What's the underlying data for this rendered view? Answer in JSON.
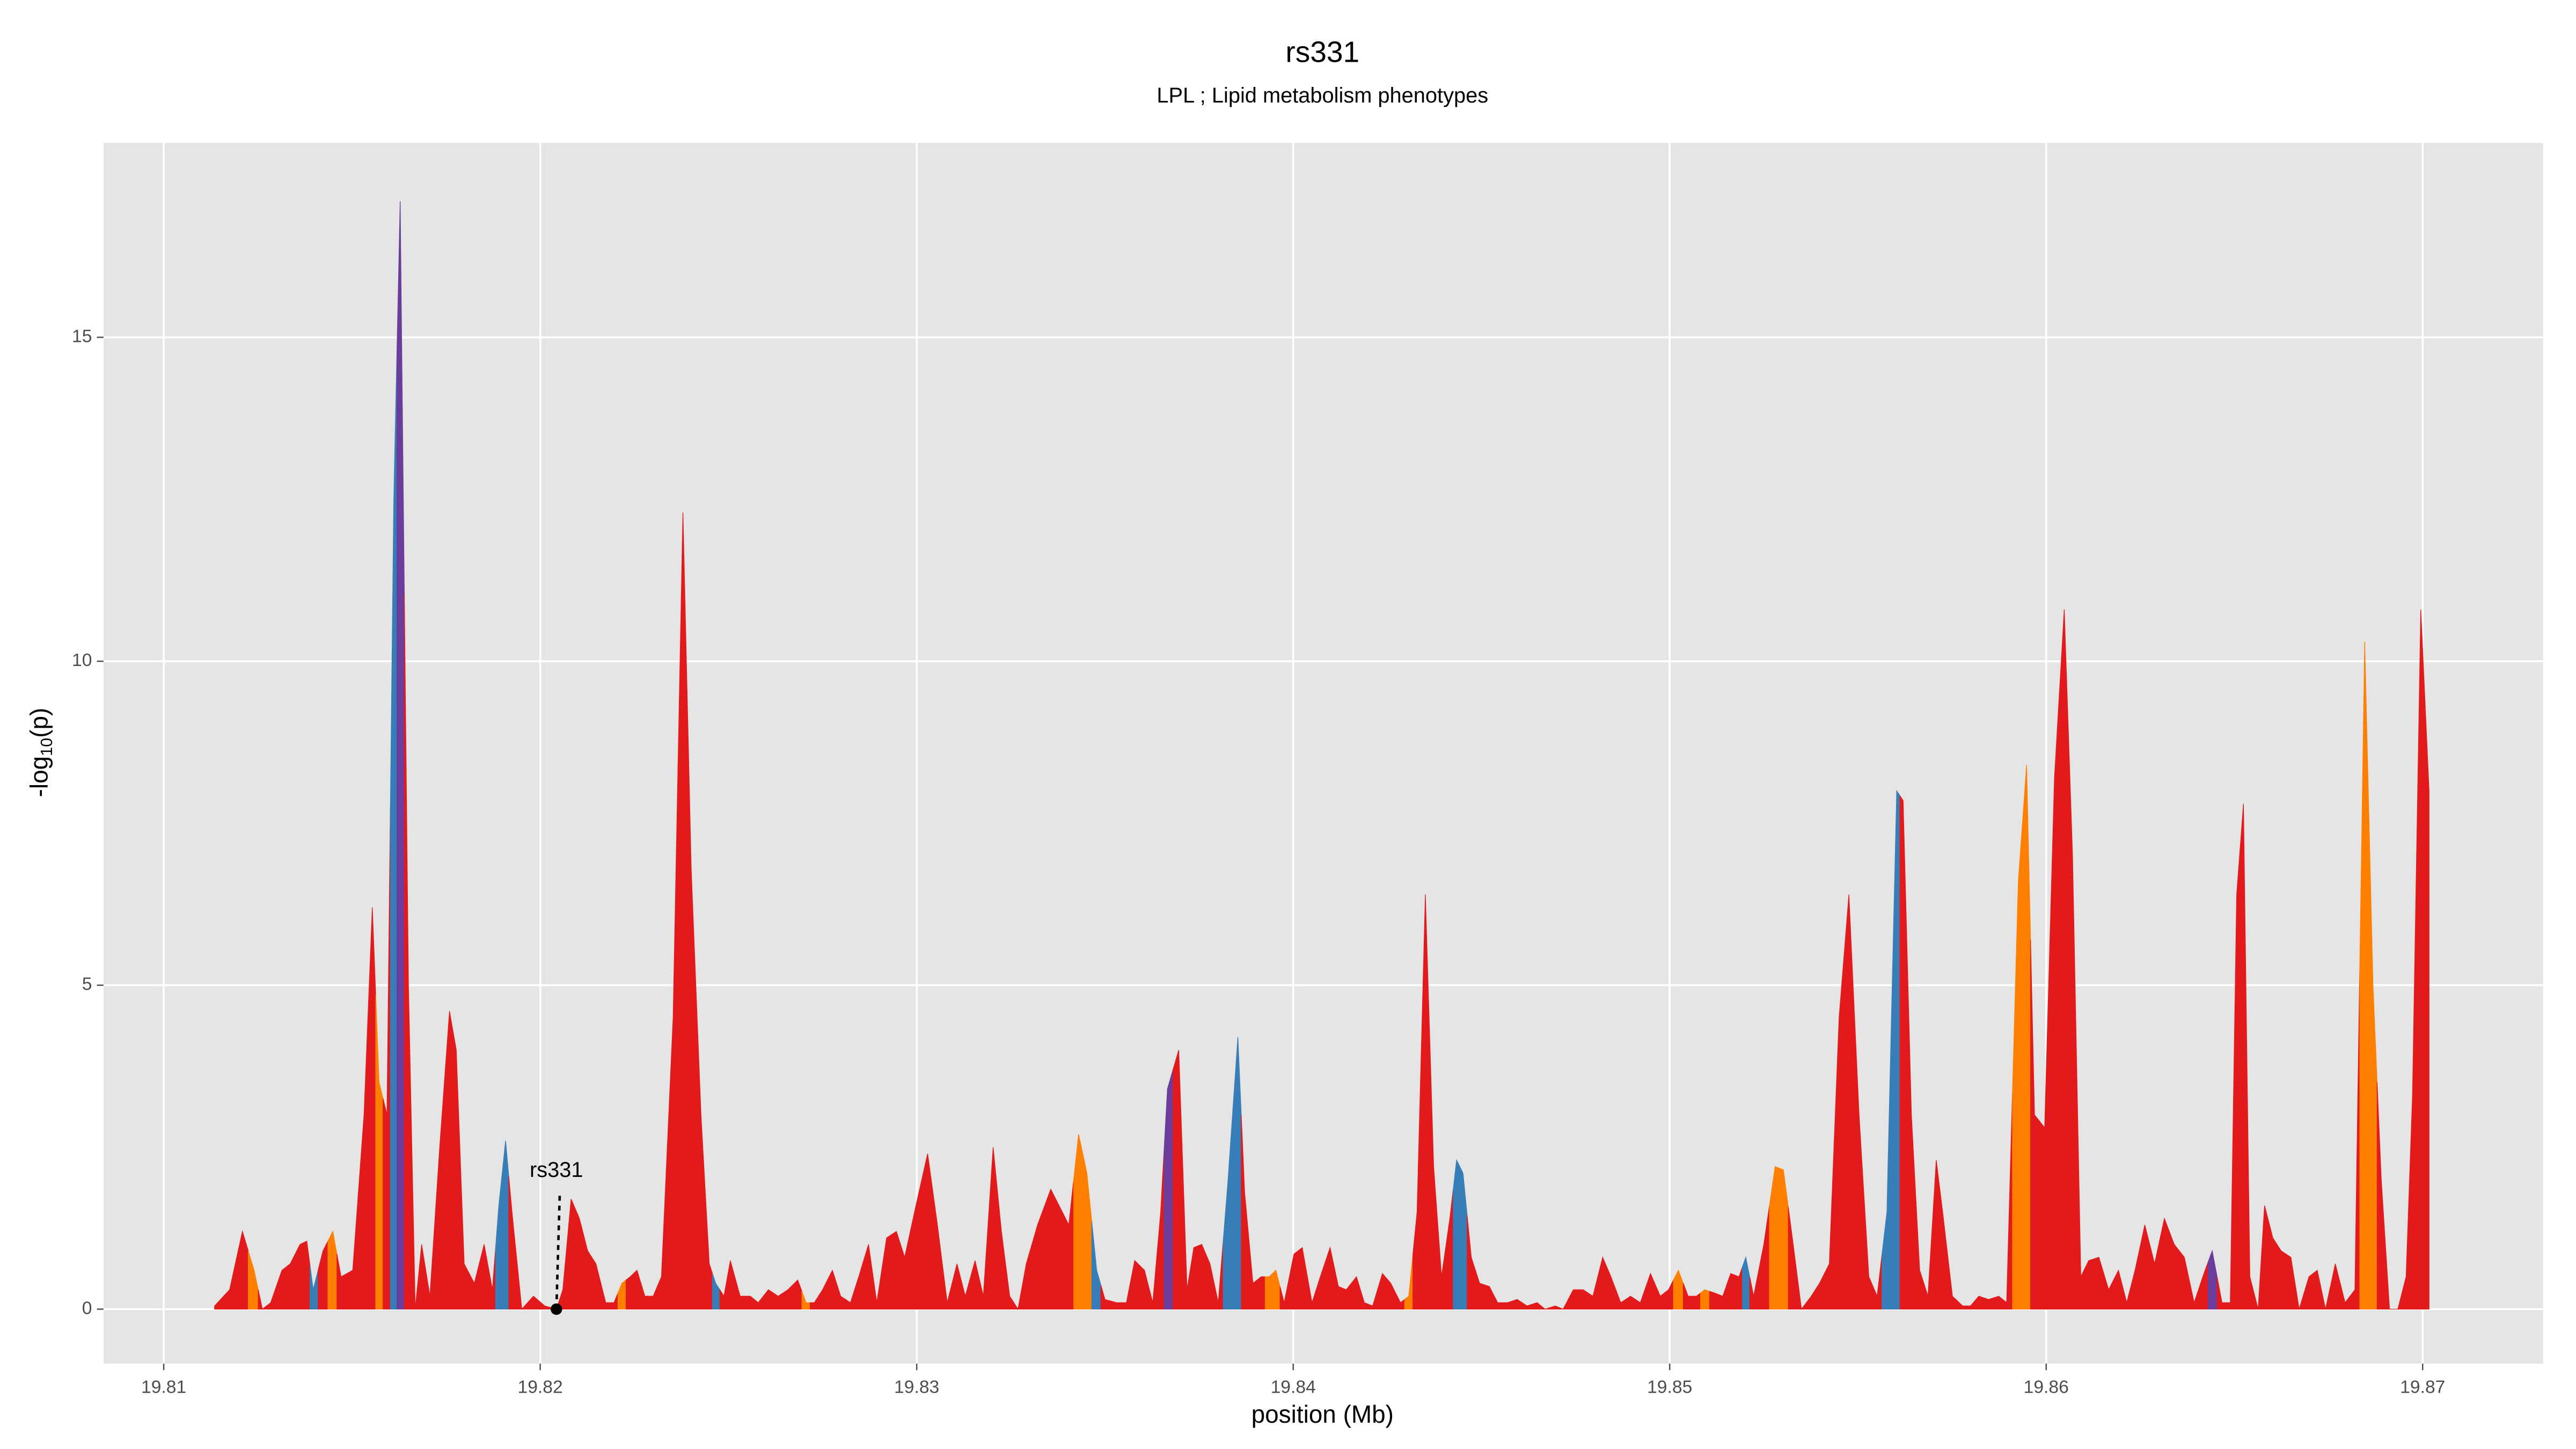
{
  "chart_data": {
    "type": "area",
    "title": "rs331",
    "subtitle": "LPL ; Lipid metabolism phenotypes",
    "xlabel": "position (Mb)",
    "ylabel": [
      "-log",
      "10",
      "(p)"
    ],
    "xlim": [
      19.8084,
      19.8732
    ],
    "ylim": [
      -0.84,
      18.0
    ],
    "xticks": [
      19.81,
      19.82,
      19.83,
      19.84,
      19.85,
      19.86,
      19.87
    ],
    "yticks": [
      0,
      5,
      10,
      15
    ],
    "grid": true,
    "annotation": {
      "text": "rs331",
      "x": 19.82043,
      "y": 0
    },
    "x": [
      19.81135,
      19.81175,
      19.81209,
      19.8124,
      19.81262,
      19.81284,
      19.81314,
      19.81336,
      19.81362,
      19.8138,
      19.81397,
      19.81423,
      19.81449,
      19.81471,
      19.81502,
      19.81532,
      19.81554,
      19.81572,
      19.81593,
      19.81611,
      19.81628,
      19.8165,
      19.81668,
      19.81685,
      19.81707,
      19.81733,
      19.81759,
      19.81777,
      19.81798,
      19.81825,
      19.81851,
      19.81873,
      19.8189,
      19.81908,
      19.81925,
      19.81951,
      19.81982,
      19.82012,
      19.82043,
      19.8206,
      19.82082,
      19.82104,
      19.82126,
      19.82148,
      19.82174,
      19.82196,
      19.82217,
      19.82239,
      19.82257,
      19.82278,
      19.823,
      19.82322,
      19.82353,
      19.82379,
      19.82401,
      19.82427,
      19.82449,
      19.82466,
      19.82488,
      19.82505,
      19.82531,
      19.82558,
      19.82579,
      19.82606,
      19.82632,
      19.82658,
      19.82684,
      19.82706,
      19.82728,
      19.8275,
      19.82776,
      19.82798,
      19.82824,
      19.82846,
      19.82872,
      19.82894,
      19.8292,
      19.82946,
      19.82968,
      19.82998,
      19.83029,
      19.83055,
      19.83081,
      19.83107,
      19.83129,
      19.83155,
      19.83177,
      19.83203,
      19.83225,
      19.83247,
      19.83269,
      19.83291,
      19.83321,
      19.83356,
      19.83378,
      19.83404,
      19.8343,
      19.83452,
      19.83478,
      19.835,
      19.83531,
      19.83557,
      19.83579,
      19.83605,
      19.83627,
      19.83648,
      19.83666,
      19.83696,
      19.83718,
      19.83736,
      19.83757,
      19.83779,
      19.83801,
      19.83827,
      19.83853,
      19.83871,
      19.83893,
      19.83915,
      19.83936,
      19.83954,
      19.83976,
      19.84002,
      19.84024,
      19.8405,
      19.84072,
      19.84098,
      19.8412,
      19.84141,
      19.84168,
      19.84189,
      19.84211,
      19.84237,
      19.84259,
      19.84285,
      19.84307,
      19.84329,
      19.84351,
      19.84373,
      19.84394,
      19.84416,
      19.84434,
      19.84451,
      19.84473,
      19.84495,
      19.84521,
      19.84543,
      19.84569,
      19.84595,
      19.84621,
      19.84648,
      19.84669,
      19.84696,
      19.84717,
      19.84744,
      19.8477,
      19.84796,
      19.84822,
      19.84844,
      19.8487,
      19.84896,
      19.84922,
      19.84949,
      19.84975,
      19.84997,
      19.85023,
      19.85049,
      19.85071,
      19.85093,
      19.85119,
      19.85141,
      19.85162,
      19.85184,
      19.85202,
      19.85223,
      19.8525,
      19.8528,
      19.85302,
      19.85328,
      19.8535,
      19.85376,
      19.85398,
      19.85424,
      19.8545,
      19.85476,
      19.85503,
      19.85529,
      19.85551,
      19.85577,
      19.85603,
      19.8562,
      19.85642,
      19.85664,
      19.85686,
      19.85708,
      19.85725,
      19.85751,
      19.85778,
      19.85799,
      19.85821,
      19.85847,
      19.85874,
      19.85895,
      19.85926,
      19.85948,
      19.85969,
      19.85996,
      19.86022,
      19.86048,
      19.8607,
      19.86092,
      19.86113,
      19.8614,
      19.86166,
      19.86192,
      19.86214,
      19.86236,
      19.86262,
      19.86288,
      19.86314,
      19.8634,
      19.86367,
      19.86393,
      19.86419,
      19.86441,
      19.86467,
      19.86489,
      19.86506,
      19.86524,
      19.86541,
      19.86563,
      19.8658,
      19.86602,
      19.86624,
      19.8665,
      19.86672,
      19.86698,
      19.8672,
      19.86742,
      19.86768,
      19.86794,
      19.8682,
      19.86846,
      19.86868,
      19.8689,
      19.86912,
      19.86934,
      19.86956,
      19.86973,
      19.86995,
      19.87017
    ],
    "values": [
      0.05,
      0.3,
      1.2,
      0.6,
      0.0,
      0.1,
      0.6,
      0.7,
      1.0,
      1.05,
      0.3,
      0.9,
      1.2,
      0.5,
      0.6,
      3.0,
      6.2,
      3.5,
      3.0,
      12.5,
      17.1,
      5.0,
      0.0,
      1.0,
      0.2,
      2.5,
      4.6,
      4.0,
      0.7,
      0.4,
      1.0,
      0.3,
      1.6,
      2.6,
      1.5,
      0.0,
      0.2,
      0.05,
      0.0,
      0.3,
      1.7,
      1.4,
      0.9,
      0.7,
      0.1,
      0.1,
      0.4,
      0.5,
      0.6,
      0.2,
      0.2,
      0.5,
      4.5,
      12.3,
      6.8,
      3.0,
      0.7,
      0.4,
      0.2,
      0.75,
      0.2,
      0.2,
      0.1,
      0.3,
      0.2,
      0.3,
      0.45,
      0.1,
      0.1,
      0.3,
      0.6,
      0.2,
      0.1,
      0.5,
      1.0,
      0.1,
      1.1,
      1.2,
      0.8,
      1.6,
      2.4,
      1.3,
      0.1,
      0.7,
      0.2,
      0.75,
      0.2,
      2.5,
      1.2,
      0.2,
      0.0,
      0.7,
      1.3,
      1.85,
      1.6,
      1.3,
      2.7,
      2.1,
      0.6,
      0.15,
      0.1,
      0.1,
      0.75,
      0.6,
      0.1,
      1.5,
      3.4,
      4.0,
      0.3,
      0.95,
      1.0,
      0.7,
      0.1,
      2.0,
      4.2,
      1.8,
      0.4,
      0.5,
      0.5,
      0.6,
      0.1,
      0.85,
      0.95,
      0.1,
      0.5,
      0.95,
      0.35,
      0.3,
      0.5,
      0.1,
      0.05,
      0.55,
      0.4,
      0.1,
      0.2,
      1.5,
      6.4,
      2.2,
      0.5,
      1.4,
      2.3,
      2.1,
      0.8,
      0.4,
      0.35,
      0.1,
      0.1,
      0.15,
      0.05,
      0.1,
      0.0,
      0.05,
      0.0,
      0.3,
      0.3,
      0.2,
      0.8,
      0.5,
      0.1,
      0.2,
      0.1,
      0.55,
      0.2,
      0.3,
      0.6,
      0.2,
      0.2,
      0.3,
      0.25,
      0.2,
      0.55,
      0.5,
      0.8,
      0.2,
      1.0,
      2.2,
      2.15,
      1.0,
      0.0,
      0.2,
      0.4,
      0.7,
      4.5,
      6.4,
      3.0,
      0.5,
      0.2,
      1.5,
      8.0,
      7.85,
      3.0,
      0.6,
      0.2,
      2.3,
      1.5,
      0.2,
      0.05,
      0.05,
      0.2,
      0.15,
      0.2,
      0.1,
      6.6,
      8.4,
      3.0,
      2.8,
      8.2,
      10.8,
      7.0,
      0.5,
      0.75,
      0.8,
      0.3,
      0.6,
      0.1,
      0.6,
      1.3,
      0.7,
      1.4,
      1.0,
      0.8,
      0.1,
      0.55,
      0.9,
      0.1,
      0.1,
      6.4,
      7.8,
      0.5,
      0.0,
      1.6,
      1.1,
      0.9,
      0.8,
      0.0,
      0.5,
      0.6,
      0.0,
      0.7,
      0.1,
      0.3,
      10.3,
      5.0,
      2.0,
      0.0,
      0.0,
      0.5,
      3.3,
      10.8,
      8.0
    ],
    "colors": [
      "#e31a1c",
      "#e31a1c",
      "#e31a1c",
      "#ff7f00",
      "#e31a1c",
      "#e31a1c",
      "#e31a1c",
      "#e31a1c",
      "#e31a1c",
      "#e31a1c",
      "#377eb8",
      "#e31a1c",
      "#ff7f00",
      "#e31a1c",
      "#e31a1c",
      "#e31a1c",
      "#e31a1c",
      "#ff7f00",
      "#e31a1c",
      "#377eb8",
      "#6a3d9a",
      "#e31a1c",
      "#e31a1c",
      "#e31a1c",
      "#e31a1c",
      "#e31a1c",
      "#e31a1c",
      "#e31a1c",
      "#e31a1c",
      "#e31a1c",
      "#e31a1c",
      "#e31a1c",
      "#377eb8",
      "#377eb8",
      "#e31a1c",
      "#e31a1c",
      "#e31a1c",
      "#e31a1c",
      "#e31a1c",
      "#e31a1c",
      "#e31a1c",
      "#e31a1c",
      "#e31a1c",
      "#e31a1c",
      "#e31a1c",
      "#e31a1c",
      "#ff7f00",
      "#e31a1c",
      "#e31a1c",
      "#e31a1c",
      "#e31a1c",
      "#e31a1c",
      "#e31a1c",
      "#e31a1c",
      "#e31a1c",
      "#e31a1c",
      "#e31a1c",
      "#377eb8",
      "#e31a1c",
      "#e31a1c",
      "#e31a1c",
      "#e31a1c",
      "#e31a1c",
      "#e31a1c",
      "#e31a1c",
      "#e31a1c",
      "#e31a1c",
      "#ff7f00",
      "#e31a1c",
      "#e31a1c",
      "#e31a1c",
      "#e31a1c",
      "#e31a1c",
      "#e31a1c",
      "#e31a1c",
      "#e31a1c",
      "#e31a1c",
      "#e31a1c",
      "#e31a1c",
      "#e31a1c",
      "#e31a1c",
      "#e31a1c",
      "#e31a1c",
      "#e31a1c",
      "#e31a1c",
      "#e31a1c",
      "#e31a1c",
      "#e31a1c",
      "#e31a1c",
      "#e31a1c",
      "#e31a1c",
      "#e31a1c",
      "#e31a1c",
      "#e31a1c",
      "#e31a1c",
      "#e31a1c",
      "#ff7f00",
      "#ff7f00",
      "#377eb8",
      "#e31a1c",
      "#e31a1c",
      "#e31a1c",
      "#e31a1c",
      "#e31a1c",
      "#e31a1c",
      "#e31a1c",
      "#6a3d9a",
      "#e31a1c",
      "#e31a1c",
      "#e31a1c",
      "#e31a1c",
      "#e31a1c",
      "#e31a1c",
      "#377eb8",
      "#377eb8",
      "#e31a1c",
      "#e31a1c",
      "#e31a1c",
      "#ff7f00",
      "#ff7f00",
      "#e31a1c",
      "#e31a1c",
      "#e31a1c",
      "#e31a1c",
      "#e31a1c",
      "#e31a1c",
      "#e31a1c",
      "#e31a1c",
      "#e31a1c",
      "#e31a1c",
      "#e31a1c",
      "#e31a1c",
      "#e31a1c",
      "#e31a1c",
      "#ff7f00",
      "#e31a1c",
      "#e31a1c",
      "#e31a1c",
      "#e31a1c",
      "#e31a1c",
      "#377eb8",
      "#377eb8",
      "#e31a1c",
      "#e31a1c",
      "#e31a1c",
      "#e31a1c",
      "#e31a1c",
      "#e31a1c",
      "#e31a1c",
      "#e31a1c",
      "#e31a1c",
      "#e31a1c",
      "#e31a1c",
      "#e31a1c",
      "#e31a1c",
      "#e31a1c",
      "#e31a1c",
      "#e31a1c",
      "#e31a1c",
      "#e31a1c",
      "#e31a1c",
      "#e31a1c",
      "#e31a1c",
      "#e31a1c",
      "#ff7f00",
      "#e31a1c",
      "#e31a1c",
      "#ff7f00",
      "#e31a1c",
      "#e31a1c",
      "#e31a1c",
      "#e31a1c",
      "#377eb8",
      "#e31a1c",
      "#e31a1c",
      "#ff7f00",
      "#ff7f00",
      "#e31a1c",
      "#e31a1c",
      "#e31a1c",
      "#e31a1c",
      "#e31a1c",
      "#e31a1c",
      "#e31a1c",
      "#e31a1c",
      "#e31a1c",
      "#e31a1c",
      "#377eb8",
      "#377eb8",
      "#e31a1c",
      "#e31a1c",
      "#e31a1c",
      "#e31a1c",
      "#e31a1c",
      "#e31a1c",
      "#e31a1c",
      "#e31a1c",
      "#e31a1c",
      "#e31a1c",
      "#e31a1c",
      "#e31a1c",
      "#e31a1c",
      "#ff7f00",
      "#ff7f00",
      "#e31a1c",
      "#e31a1c",
      "#e31a1c",
      "#e31a1c",
      "#e31a1c",
      "#e31a1c",
      "#e31a1c",
      "#e31a1c",
      "#e31a1c",
      "#e31a1c",
      "#e31a1c",
      "#e31a1c",
      "#e31a1c",
      "#e31a1c",
      "#e31a1c",
      "#e31a1c",
      "#e31a1c",
      "#e31a1c",
      "#e31a1c",
      "#6a3d9a",
      "#e31a1c",
      "#e31a1c",
      "#e31a1c",
      "#e31a1c",
      "#e31a1c",
      "#e31a1c",
      "#e31a1c",
      "#e31a1c",
      "#e31a1c",
      "#e31a1c",
      "#e31a1c",
      "#e31a1c",
      "#e31a1c",
      "#e31a1c",
      "#e31a1c",
      "#e31a1c",
      "#e31a1c",
      "#ff7f00",
      "#ff7f00",
      "#e31a1c",
      "#e31a1c",
      "#e31a1c",
      "#e31a1c",
      "#e31a1c",
      "#e31a1c",
      "#e31a1c"
    ]
  }
}
